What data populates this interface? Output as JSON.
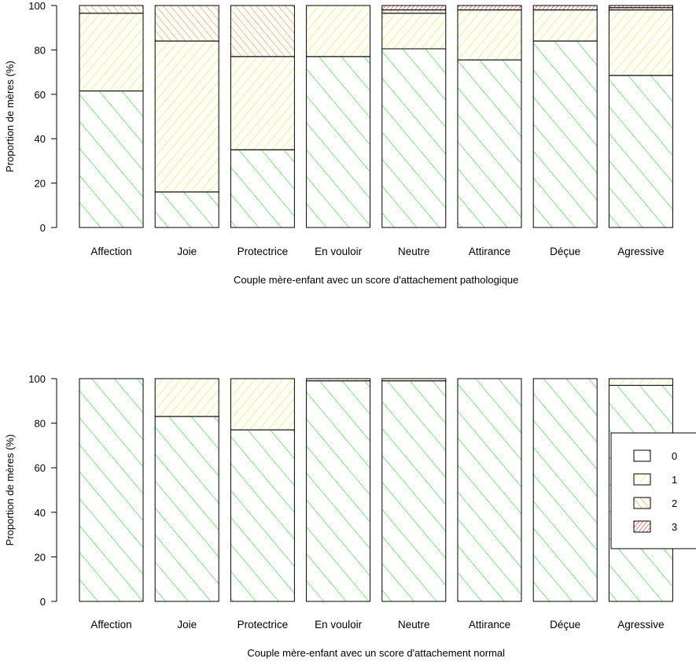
{
  "colors": {
    "level_0": "#00dd00",
    "level_1": "#e6e600",
    "level_2": "#ee8800",
    "level_3": "#dd0000",
    "axis": "#000000"
  },
  "legend": {
    "placement": "right-middle of bottom panel",
    "entries": [
      "0",
      "1",
      "2",
      "3"
    ]
  },
  "chart_data": [
    {
      "type": "bar",
      "stacked": true,
      "fill": "hatched",
      "xlabel": "Couple mère-enfant avec un score d'attachement pathologique",
      "ylabel": "Proportion de mères (%)",
      "ylim": [
        0,
        100
      ],
      "yticks": [
        0,
        20,
        40,
        60,
        80,
        100
      ],
      "grid": false,
      "categories": [
        "Affection",
        "Joie",
        "Protectrice",
        "En vouloir",
        "Neutre",
        "Attirance",
        "Déçue",
        "Agressive"
      ],
      "series": [
        {
          "name": "0",
          "values": [
            61.5,
            16,
            35,
            77,
            80.5,
            75.5,
            84,
            68.5
          ]
        },
        {
          "name": "1",
          "values": [
            35,
            68,
            42,
            23,
            16,
            22.5,
            14,
            29.5
          ]
        },
        {
          "name": "2",
          "values": [
            3.5,
            16,
            23,
            0,
            1.5,
            0,
            0,
            1
          ]
        },
        {
          "name": "3",
          "values": [
            0,
            0,
            0,
            0,
            2,
            2,
            2,
            1
          ]
        }
      ]
    },
    {
      "type": "bar",
      "stacked": true,
      "fill": "hatched",
      "xlabel": "Couple mère-enfant avec un score d'attachement normal",
      "ylabel": "Proportion de mères (%)",
      "ylim": [
        0,
        100
      ],
      "yticks": [
        0,
        20,
        40,
        60,
        80,
        100
      ],
      "grid": false,
      "categories": [
        "Affection",
        "Joie",
        "Protectrice",
        "En vouloir",
        "Neutre",
        "Attirance",
        "Déçue",
        "Agressive"
      ],
      "series": [
        {
          "name": "0",
          "values": [
            100,
            83,
            77,
            99,
            99,
            100,
            100,
            97
          ]
        },
        {
          "name": "1",
          "values": [
            0,
            17,
            23,
            1,
            1,
            0,
            0,
            3
          ]
        },
        {
          "name": "2",
          "values": [
            0,
            0,
            0,
            0,
            0,
            0,
            0,
            0
          ]
        },
        {
          "name": "3",
          "values": [
            0,
            0,
            0,
            0,
            0,
            0,
            0,
            0
          ]
        }
      ]
    }
  ]
}
